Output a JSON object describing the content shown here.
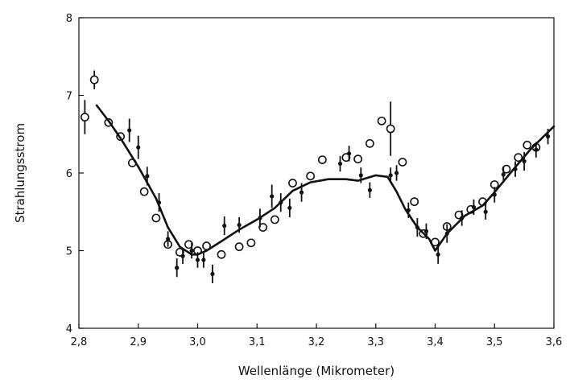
{
  "chart_data": {
    "type": "scatter",
    "title": "",
    "xlabel": "Wellenlänge (Mikrometer)",
    "ylabel": "Strahlungsstrom",
    "xlim": [
      2.8,
      3.6
    ],
    "ylim": [
      4,
      8
    ],
    "x_ticks": [
      2.8,
      2.9,
      3.0,
      3.1,
      3.2,
      3.3,
      3.4,
      3.5,
      3.6
    ],
    "x_tick_labels": [
      "2,8",
      "2,9",
      "3,0",
      "3,1",
      "3,2",
      "3,3",
      "3,4",
      "3,5",
      "3,6"
    ],
    "y_ticks": [
      4,
      5,
      6,
      7,
      8
    ],
    "y_tick_labels": [
      "4",
      "5",
      "6",
      "7",
      "8"
    ],
    "grid": false,
    "legend": "none",
    "series": [
      {
        "style": "open-circles",
        "color": "#111111",
        "x": [
          2.81,
          2.826,
          2.85,
          2.87,
          2.89,
          2.91,
          2.93,
          2.95,
          2.97,
          2.985,
          3.0,
          3.015,
          3.04,
          3.07,
          3.09,
          3.11,
          3.13,
          3.16,
          3.19,
          3.21,
          3.25,
          3.27,
          3.29,
          3.31,
          3.325,
          3.345,
          3.365,
          3.38,
          3.4,
          3.42,
          3.44,
          3.46,
          3.48,
          3.5,
          3.52,
          3.54,
          3.555,
          3.57
        ],
        "y": [
          6.72,
          7.2,
          6.65,
          6.47,
          6.13,
          5.76,
          5.42,
          5.08,
          4.98,
          5.08,
          5.0,
          5.06,
          4.95,
          5.05,
          5.1,
          5.3,
          5.4,
          5.87,
          5.96,
          6.17,
          6.2,
          6.18,
          6.38,
          6.67,
          6.57,
          6.14,
          5.63,
          5.22,
          5.11,
          5.31,
          5.46,
          5.53,
          5.63,
          5.85,
          6.05,
          6.2,
          6.36,
          6.33
        ],
        "yerr": [
          0.22,
          0.12,
          0,
          0,
          0,
          0,
          0,
          0,
          0,
          0,
          0,
          0,
          0,
          0,
          0,
          0,
          0,
          0,
          0,
          0,
          0,
          0,
          0,
          0,
          0.35,
          0,
          0,
          0,
          0,
          0,
          0,
          0,
          0,
          0,
          0,
          0,
          0,
          0
        ]
      },
      {
        "style": "filled-dots-with-error-bars",
        "color": "#111111",
        "x": [
          2.885,
          2.9,
          2.915,
          2.935,
          2.95,
          2.965,
          2.975,
          2.99,
          3.0,
          3.01,
          3.025,
          3.045,
          3.07,
          3.105,
          3.125,
          3.14,
          3.155,
          3.175,
          3.24,
          3.255,
          3.275,
          3.29,
          3.325,
          3.335,
          3.355,
          3.37,
          3.385,
          3.405,
          3.42,
          3.445,
          3.465,
          3.485,
          3.5,
          3.515,
          3.535,
          3.55,
          3.57,
          3.59
        ],
        "y": [
          6.55,
          6.33,
          5.96,
          5.62,
          5.15,
          4.78,
          4.93,
          5.0,
          4.88,
          4.88,
          4.7,
          5.32,
          5.33,
          5.42,
          5.7,
          5.62,
          5.55,
          5.75,
          6.12,
          6.25,
          5.97,
          5.78,
          5.97,
          6.0,
          5.52,
          5.3,
          5.25,
          4.95,
          5.22,
          5.42,
          5.56,
          5.5,
          5.72,
          5.98,
          6.05,
          6.15,
          6.3,
          6.47
        ],
        "yerr": [
          0.15,
          0.15,
          0.12,
          0.12,
          0.1,
          0.12,
          0.1,
          0.1,
          0.1,
          0.1,
          0.12,
          0.12,
          0.1,
          0.12,
          0.15,
          0.12,
          0.12,
          0.12,
          0.1,
          0.1,
          0.1,
          0.1,
          0.1,
          0.1,
          0.1,
          0.12,
          0.1,
          0.12,
          0.12,
          0.1,
          0.1,
          0.1,
          0.1,
          0.1,
          0.1,
          0.12,
          0.1,
          0.1
        ]
      },
      {
        "style": "line",
        "color": "#111111",
        "x": [
          2.83,
          2.85,
          2.87,
          2.9,
          2.93,
          2.95,
          2.97,
          2.99,
          3.0,
          3.015,
          3.04,
          3.07,
          3.1,
          3.13,
          3.16,
          3.19,
          3.22,
          3.25,
          3.27,
          3.3,
          3.32,
          3.335,
          3.35,
          3.37,
          3.39,
          3.4,
          3.42,
          3.45,
          3.48,
          3.5,
          3.53,
          3.56,
          3.6
        ],
        "y": [
          6.87,
          6.67,
          6.45,
          6.08,
          5.67,
          5.3,
          5.05,
          4.95,
          4.95,
          5.0,
          5.12,
          5.27,
          5.4,
          5.55,
          5.77,
          5.88,
          5.92,
          5.92,
          5.9,
          5.97,
          5.95,
          5.76,
          5.53,
          5.3,
          5.15,
          5.0,
          5.22,
          5.45,
          5.58,
          5.75,
          6.03,
          6.3,
          6.6
        ]
      }
    ]
  }
}
